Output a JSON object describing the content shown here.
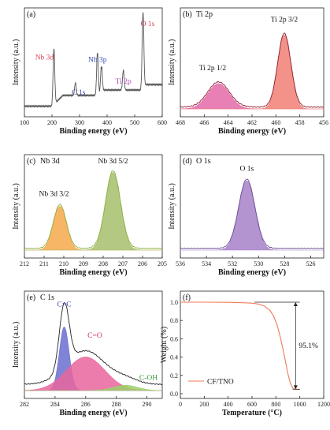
{
  "chart_data": [
    {
      "id": "a",
      "type": "line",
      "panel_label": "(a)",
      "xlabel": "Binding energy (eV)",
      "ylabel": "Intensity (a.u.)",
      "xlim": [
        100,
        600
      ],
      "xticks": [
        "100",
        "200",
        "300",
        "400",
        "500",
        "600"
      ],
      "line_color": "#555555",
      "peaks": [
        {
          "x": 207,
          "h": 0.62,
          "w": 3,
          "label": "Nb 3d",
          "label_color": "#e2435b"
        },
        {
          "x": 285,
          "h": 0.14,
          "w": 3,
          "label": "C 1s",
          "label_color": "#3848b8"
        },
        {
          "x": 365,
          "h": 0.48,
          "w": 3,
          "label": "Nb 3p",
          "label_color": "#3848b8"
        },
        {
          "x": 379,
          "h": 0.32,
          "w": 3
        },
        {
          "x": 459,
          "h": 0.22,
          "w": 3,
          "label": "Ti 2p",
          "label_color": "#b845b5"
        },
        {
          "x": 530,
          "h": 0.85,
          "w": 3,
          "label": "O 1s",
          "label_color": "#e2435b"
        }
      ]
    },
    {
      "id": "b",
      "type": "area",
      "panel_label": "(b)",
      "title": "Ti 2p",
      "xlabel": "Binding energy (eV)",
      "ylabel": "Intensity (a.u.)",
      "xlim": [
        468,
        456
      ],
      "xticks": [
        "468",
        "466",
        "464",
        "462",
        "460",
        "458",
        "456"
      ],
      "envelope_color": "#8a1c30",
      "series": [
        {
          "name": "Ti 2p 1/2",
          "center": 464.8,
          "height": 0.28,
          "width": 0.9,
          "color": "#e46aa8",
          "label_x": 465.3,
          "label_h": 0.43
        },
        {
          "name": "Ti 2p 3/2",
          "center": 459.3,
          "height": 0.82,
          "width": 0.55,
          "color": "#f07f73",
          "label_x": 459.3,
          "label_h": 0.97
        }
      ]
    },
    {
      "id": "c",
      "type": "area",
      "panel_label": "(c)",
      "title": "Nb 3d",
      "xlabel": "Binding energy (eV)",
      "ylabel": "Intensity (a.u.)",
      "xlim": [
        212,
        205
      ],
      "xticks": [
        "212",
        "211",
        "210",
        "209",
        "208",
        "207",
        "206",
        "205"
      ],
      "envelope_color": "#8ab040",
      "series": [
        {
          "name": "Nb 3d 3/2",
          "center": 210.2,
          "height": 0.52,
          "width": 0.33,
          "color": "#f5a94a",
          "label_x": 210.5,
          "label_h": 0.64
        },
        {
          "name": "Nb 3d 5/2",
          "center": 207.5,
          "height": 0.92,
          "width": 0.38,
          "color": "#a6c06c",
          "label_x": 207.5,
          "label_h": 1.03
        }
      ]
    },
    {
      "id": "d",
      "type": "area",
      "panel_label": "(d)",
      "title": "O 1s",
      "xlabel": "Binding energy (eV)",
      "ylabel": "Intensity (a.u.)",
      "xlim": [
        536,
        525
      ],
      "xticks": [
        "536",
        "534",
        "532",
        "530",
        "528",
        "526"
      ],
      "envelope_color": "#6a4a90",
      "series": [
        {
          "name": "O 1s",
          "center": 530.9,
          "height": 0.82,
          "width": 0.62,
          "color": "#a681c8",
          "label_x": 530.9,
          "label_h": 0.94
        }
      ]
    },
    {
      "id": "e",
      "type": "area",
      "panel_label": "(e)",
      "title": "C 1s",
      "xlabel": "Binding energy (eV)",
      "ylabel": "Intensity (a.u.)",
      "xlim": [
        282,
        291
      ],
      "xticks": [
        "282",
        "284",
        "286",
        "288",
        "290"
      ],
      "envelope_color": "#222222",
      "series": [
        {
          "name": "C=C",
          "center": 284.6,
          "height": 0.72,
          "width": 0.32,
          "color": "#6a6fd0",
          "label_x": 284.6,
          "label_h": 0.95,
          "label_color": "#3848b8"
        },
        {
          "name": "C=O",
          "center": 286.0,
          "height": 0.38,
          "width": 1.25,
          "color": "#e8659d",
          "label_x": 286.6,
          "label_h": 0.6,
          "label_color": "#d22a6b"
        },
        {
          "name": "C-OH",
          "center": 288.6,
          "height": 0.06,
          "width": 0.8,
          "color": "#9bd06a",
          "label_x": 290.1,
          "label_h": 0.12,
          "label_color": "#3e9a3a"
        }
      ]
    },
    {
      "id": "f",
      "type": "line",
      "panel_label": "(f)",
      "xlabel": "Temperature (°C)",
      "ylabel": "Weight (%)",
      "xlim": [
        0,
        1200
      ],
      "ylim": [
        0,
        1.0
      ],
      "xticks": [
        "0",
        "200",
        "400",
        "600",
        "800",
        "1000",
        "1200"
      ],
      "yticks": [
        "0.0",
        "0.2",
        "0.4",
        "0.6",
        "0.8",
        "1.0"
      ],
      "series": [
        {
          "name": "CF/TNO",
          "color": "#f07b5a",
          "x": [
            0,
            200,
            400,
            500,
            600,
            650,
            700,
            750,
            780,
            810,
            840,
            870,
            900,
            920,
            940,
            960,
            980,
            1000
          ],
          "y": [
            1.0,
            1.0,
            0.998,
            0.995,
            0.99,
            0.98,
            0.96,
            0.91,
            0.85,
            0.75,
            0.6,
            0.42,
            0.22,
            0.12,
            0.06,
            0.05,
            0.049,
            0.049
          ]
        }
      ],
      "annotation": "95.1%",
      "legend_position": "bottom-left"
    }
  ]
}
